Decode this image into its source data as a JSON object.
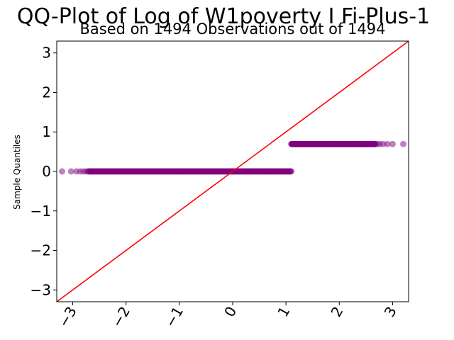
{
  "chart_data": {
    "type": "scatter",
    "title": "QQ-Plot of Log of W1poverty I Fi-Plus-1",
    "subtitle": "Based on 1494 Observations out of 1494",
    "xlabel": "",
    "ylabel": "Sample Quantiles",
    "xlim": [
      -3.3,
      3.3
    ],
    "ylim": [
      -3.3,
      3.3
    ],
    "xticks": [
      -3,
      -2,
      -1,
      0,
      1,
      2,
      3
    ],
    "yticks": [
      -3,
      -2,
      -1,
      0,
      1,
      2,
      3
    ],
    "xtick_labels": [
      "−3",
      "−2",
      "−1",
      "0",
      "1",
      "2",
      "3"
    ],
    "ytick_labels": [
      "−3",
      "−2",
      "−1",
      "0",
      "1",
      "2",
      "3"
    ],
    "grid": false,
    "reference_line": {
      "slope": 1,
      "intercept": 0,
      "color": "#ff0000"
    },
    "point_color": "#800080",
    "series": [
      {
        "segments": [
          {
            "x_from": -3.2,
            "x_to": 1.1,
            "y": 0.0,
            "outliers_x": [
              -3.2,
              -3.03,
              -2.93,
              -2.86,
              -2.8,
              -2.75
            ]
          },
          {
            "x_from": 1.1,
            "x_to": 3.2,
            "y": 0.693,
            "outliers_x": [
              3.2,
              3.0,
              2.9,
              2.82,
              2.76,
              2.71
            ]
          }
        ]
      }
    ]
  }
}
